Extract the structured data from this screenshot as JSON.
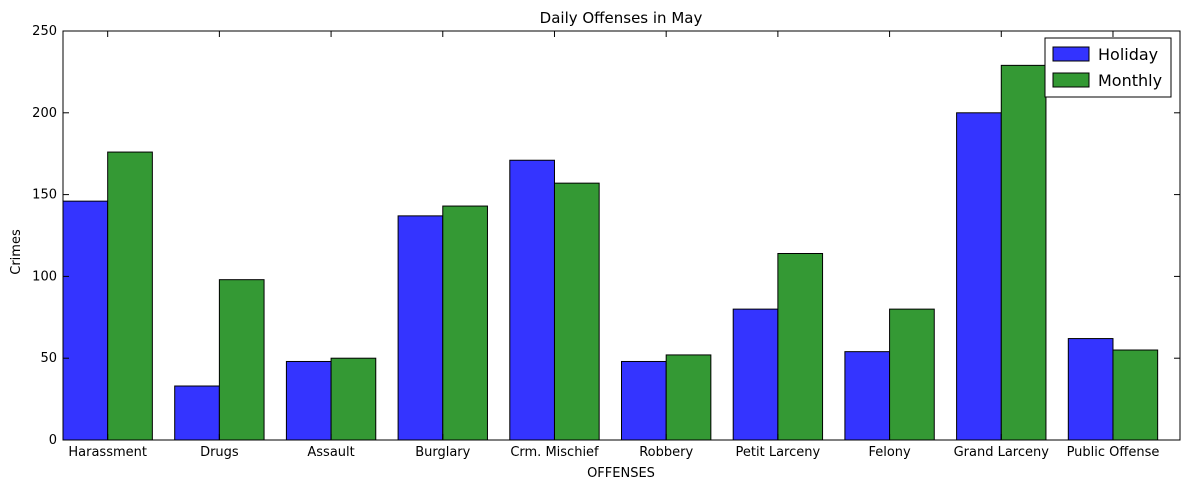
{
  "chart_data": {
    "type": "bar",
    "title": "Daily Offenses in May",
    "xlabel": "OFFENSES",
    "ylabel": "Crimes",
    "ylim": [
      0,
      250
    ],
    "yticks": [
      0,
      50,
      100,
      150,
      200,
      250
    ],
    "categories": [
      "Harassment",
      "Drugs",
      "Assault",
      "Burglary",
      "Crm. Mischief",
      "Robbery",
      "Petit Larceny",
      "Felony",
      "Grand Larceny",
      "Public Offense"
    ],
    "series": [
      {
        "name": "Holiday",
        "color": "#3333ff",
        "values": [
          146,
          33,
          48,
          137,
          171,
          48,
          80,
          54,
          200,
          62
        ]
      },
      {
        "name": "Monthly",
        "color": "#339933",
        "values": [
          176,
          98,
          50,
          143,
          157,
          52,
          114,
          80,
          229,
          55
        ]
      }
    ],
    "legend_position": "top-right",
    "grid": false
  }
}
